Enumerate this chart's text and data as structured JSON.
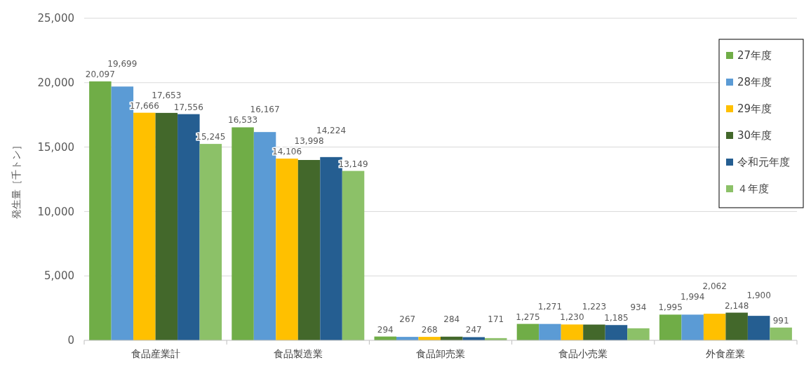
{
  "chart_data": {
    "type": "bar",
    "ylabel": "発生量［千トン］",
    "categories": [
      "食品産業計",
      "食品製造業",
      "食品卸売業",
      "食品小売業",
      "外食産業"
    ],
    "series": [
      {
        "name": "27年度",
        "color": "#70ad47",
        "values": [
          20097,
          16533,
          294,
          1275,
          1995
        ],
        "value_labels": [
          "20,097",
          "16,533",
          "294",
          "1,275",
          "1,995"
        ]
      },
      {
        "name": "28年度",
        "color": "#5b9bd5",
        "values": [
          19699,
          16167,
          267,
          1271,
          1994
        ],
        "value_labels": [
          "19,699",
          "16,167",
          "267",
          "1,271",
          "1,994"
        ]
      },
      {
        "name": "29年度",
        "color": "#ffc000",
        "values": [
          17666,
          14106,
          268,
          1230,
          2062
        ],
        "value_labels": [
          "17,666",
          "14,106",
          "268",
          "1,230",
          "2,062"
        ]
      },
      {
        "name": "30年度",
        "color": "#43682b",
        "values": [
          17653,
          13998,
          284,
          1223,
          2148
        ],
        "value_labels": [
          "17,653",
          "13,998",
          "284",
          "1,223",
          "2,148"
        ]
      },
      {
        "name": "令和元年度",
        "color": "#255e91",
        "values": [
          17556,
          14224,
          247,
          1185,
          1900
        ],
        "value_labels": [
          "17,556",
          "14,224",
          "247",
          "1,185",
          "1,900"
        ]
      },
      {
        "name": "４年度",
        "color": "#8cc168",
        "values": [
          15245,
          13149,
          171,
          934,
          991
        ],
        "value_labels": [
          "15,245",
          "13,149",
          "171",
          "934",
          "991"
        ]
      }
    ],
    "ylim": [
      0,
      25000
    ],
    "yticks": [
      {
        "value": 0,
        "label": "0"
      },
      {
        "value": 5000,
        "label": "5,000"
      },
      {
        "value": 10000,
        "label": "10,000"
      },
      {
        "value": 15000,
        "label": "15,000"
      },
      {
        "value": 20000,
        "label": "20,000"
      },
      {
        "value": 25000,
        "label": "25,000"
      }
    ],
    "grid": "y",
    "legend": "top right"
  }
}
